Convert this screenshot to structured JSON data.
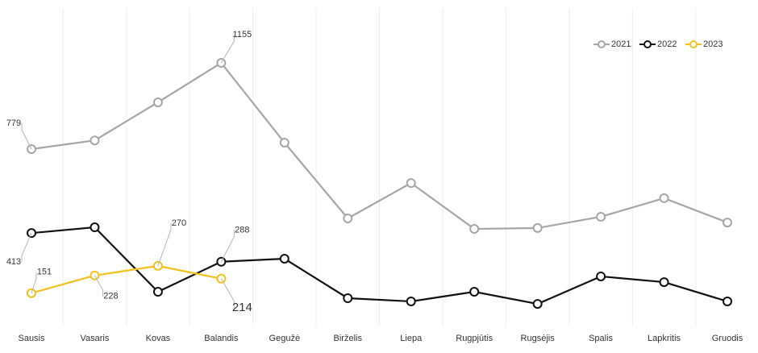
{
  "chart_data": {
    "type": "line",
    "categories": [
      "Sausis",
      "Vasaris",
      "Kovas",
      "Balandis",
      "Gegužė",
      "Birželis",
      "Liepa",
      "Rugpjūtis",
      "Rugsėjis",
      "Spalis",
      "Lapkritis",
      "Gruodis"
    ],
    "ylim": [
      0,
      1400
    ],
    "grid": true,
    "legend": "top-right",
    "series": [
      {
        "name": "2021",
        "color": "#a6a6a6",
        "values": [
          779,
          817,
          983,
          1155,
          807,
          477,
          631,
          431,
          435,
          484,
          565,
          459
        ],
        "value_labels": [
          "779",
          null,
          null,
          "1155",
          null,
          null,
          null,
          null,
          null,
          null,
          null,
          null
        ]
      },
      {
        "name": "2022",
        "color": "#111111",
        "values": [
          413,
          438,
          157,
          288,
          301,
          129,
          115,
          157,
          104,
          224,
          199,
          115
        ],
        "value_labels": [
          "413",
          null,
          null,
          "288",
          null,
          null,
          null,
          null,
          null,
          null,
          null,
          null
        ]
      },
      {
        "name": "2023",
        "color": "#f2c21b",
        "values": [
          151,
          228,
          270,
          214,
          null,
          null,
          null,
          null,
          null,
          null,
          null,
          null
        ],
        "value_labels": [
          "151",
          "228",
          "270",
          "214",
          null,
          null,
          null,
          null,
          null,
          null,
          null,
          null
        ]
      }
    ]
  }
}
